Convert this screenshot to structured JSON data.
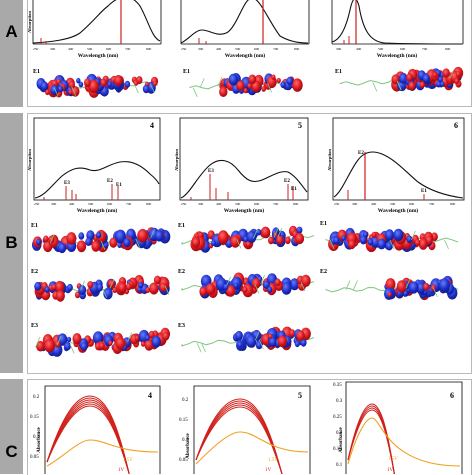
{
  "sections": {
    "a": "A",
    "b": "B",
    "c": "C"
  },
  "labels": {
    "wavelength": "Wavelength (nm)",
    "absorption": "Absorption",
    "absorbance": "Absorbance",
    "e1": "E1",
    "e2": "E2",
    "e3": "E3"
  },
  "colors": {
    "bar": "#cc1f1f",
    "curve": "#111111",
    "strip": "#a9a9a9",
    "orange": "#f0a020",
    "red": "#d0201a"
  },
  "panelA": {
    "spectra": [
      {
        "ticks": [
          "250",
          "300",
          "400",
          "500",
          "600",
          "700",
          "800"
        ]
      },
      {
        "ticks": [
          "250",
          "300",
          "400",
          "500",
          "600",
          "700",
          "800"
        ]
      },
      {
        "ticks": [
          "300",
          "400",
          "500",
          "600",
          "700",
          "800"
        ]
      }
    ],
    "orbital_label": "E1"
  },
  "panelB": {
    "spectra": [
      {
        "id": "4",
        "ticks": [
          "250",
          "300",
          "400",
          "500",
          "600",
          "700",
          "800"
        ]
      },
      {
        "id": "5",
        "ticks": [
          "250",
          "300",
          "400",
          "500",
          "600",
          "700",
          "800"
        ]
      },
      {
        "id": "6",
        "ticks": [
          "250",
          "300",
          "400",
          "500",
          "600",
          "700",
          "800"
        ]
      }
    ]
  },
  "panelC": {
    "plots": [
      {
        "id": "4",
        "yticks": [
          "0.2",
          "0.15",
          "0.1",
          "0.05"
        ],
        "voltages": [
          "1.5V",
          "1V"
        ]
      },
      {
        "id": "5",
        "yticks": [
          "0.2",
          "0.15",
          "0.1",
          "0.05"
        ],
        "voltages": [
          "1.5V",
          "1V"
        ]
      },
      {
        "id": "6",
        "yticks": [
          "0.35",
          "0.3",
          "0.25",
          "0.2",
          "0.15",
          "0.1"
        ],
        "voltages": [
          "1.5V",
          "1V"
        ]
      }
    ]
  }
}
